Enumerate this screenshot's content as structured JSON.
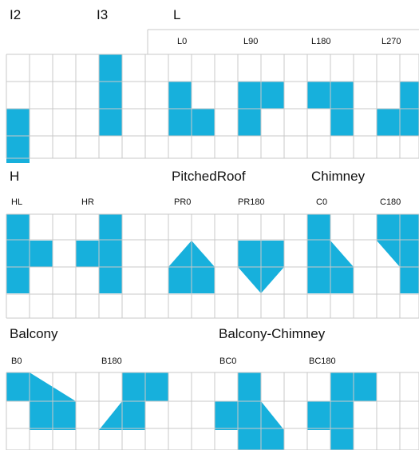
{
  "colors": {
    "fill": "#17b0dc",
    "grid": "#c8c8c8",
    "text": "#111111"
  },
  "sections": [
    {
      "title": "I2",
      "variants": [
        {
          "label": "",
          "fill": [
            [
              0,
              1
            ],
            [
              0,
              2
            ]
          ],
          "shapes": []
        }
      ]
    },
    {
      "title": "I3",
      "variants": [
        {
          "label": "",
          "fill": [
            [
              0,
              0
            ],
            [
              0,
              1
            ],
            [
              0,
              2
            ]
          ],
          "shapes": []
        }
      ]
    },
    {
      "title": "L",
      "variants": [
        {
          "label": "L0",
          "fill": [
            [
              0,
              1
            ],
            [
              0,
              2
            ],
            [
              1,
              2
            ]
          ],
          "shapes": []
        },
        {
          "label": "L90",
          "fill": [
            [
              0,
              1
            ],
            [
              1,
              1
            ],
            [
              0,
              2
            ]
          ],
          "shapes": []
        },
        {
          "label": "L180",
          "fill": [
            [
              0,
              1
            ],
            [
              1,
              1
            ],
            [
              1,
              2
            ]
          ],
          "shapes": []
        },
        {
          "label": "L270",
          "fill": [
            [
              1,
              1
            ],
            [
              0,
              2
            ],
            [
              1,
              2
            ]
          ],
          "shapes": []
        }
      ]
    },
    {
      "title": "H",
      "variants": [
        {
          "label": "HL",
          "fill": [
            [
              0,
              0
            ],
            [
              0,
              1
            ],
            [
              1,
              1
            ],
            [
              0,
              2
            ]
          ],
          "shapes": []
        },
        {
          "label": "HR",
          "fill": [
            [
              1,
              0
            ],
            [
              0,
              1
            ],
            [
              1,
              1
            ],
            [
              1,
              2
            ]
          ],
          "shapes": []
        }
      ]
    },
    {
      "title": "PitchedRoof",
      "variants": [
        {
          "label": "PR0",
          "fill": [
            [
              0,
              2
            ],
            [
              1,
              2
            ]
          ],
          "shapes": [
            "roof-up"
          ]
        },
        {
          "label": "PR180",
          "fill": [
            [
              0,
              1
            ],
            [
              1,
              1
            ]
          ],
          "shapes": [
            "roof-down"
          ]
        }
      ]
    },
    {
      "title": "Chimney",
      "variants": [
        {
          "label": "C0",
          "fill": [
            [
              0,
              0
            ],
            [
              0,
              1
            ],
            [
              0,
              2
            ],
            [
              1,
              2
            ]
          ],
          "shapes": [
            "chimney-right"
          ]
        },
        {
          "label": "C180",
          "fill": [
            [
              1,
              0
            ],
            [
              1,
              1
            ],
            [
              1,
              2
            ],
            [
              0,
              0
            ]
          ],
          "shapes": [
            "chimney-left"
          ]
        }
      ]
    },
    {
      "title": "Balcony",
      "variants": [
        {
          "label": "B0",
          "fill": [
            [
              0,
              0
            ],
            [
              1,
              1
            ],
            [
              2,
              1
            ]
          ],
          "shapes": [
            "balcony-right"
          ]
        },
        {
          "label": "B180",
          "fill": [
            [
              1,
              0
            ],
            [
              2,
              0
            ],
            [
              1,
              1
            ]
          ],
          "shapes": [
            "balcony-left"
          ]
        }
      ]
    },
    {
      "title": "Balcony-Chimney",
      "variants": [
        {
          "label": "BC0",
          "fill": [
            [
              1,
              0
            ],
            [
              0,
              1
            ],
            [
              1,
              1
            ],
            [
              1,
              2
            ],
            [
              2,
              2
            ]
          ],
          "shapes": [
            "bc-right"
          ]
        },
        {
          "label": "BC180",
          "fill": [
            [
              1,
              0
            ],
            [
              2,
              0
            ],
            [
              0,
              1
            ],
            [
              1,
              1
            ],
            [
              1,
              2
            ]
          ],
          "shapes": [
            "bc-left"
          ]
        }
      ]
    }
  ]
}
